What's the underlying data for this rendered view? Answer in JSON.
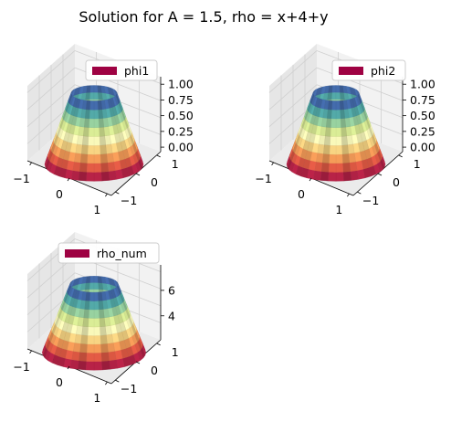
{
  "title": "Solution for A = 1.5, rho = x+4+y",
  "colormap": "Spectral",
  "colors": {
    "pane_back": "#f2f2f2",
    "pane_side": "#e6e6e6",
    "pane_floor": "#ebebeb",
    "gridline": "#d0d0d0",
    "legend_swatch": "#9e0142",
    "legend_border": "#cccccc",
    "axis_line": "#000000"
  },
  "chart_data": [
    {
      "type": "surface3d",
      "legend": "phi1",
      "shape": "truncated cone (radial profile, surface rises from outer rim to inner ring)",
      "x_ticks": [
        "−1",
        "0",
        "1"
      ],
      "y_ticks": [
        "−1",
        "0",
        "1"
      ],
      "z_ticks": [
        "0.00",
        "0.25",
        "0.50",
        "0.75",
        "1.00"
      ],
      "xlim": [
        -1,
        1
      ],
      "ylim": [
        -1,
        1
      ],
      "zlim": [
        0,
        1
      ],
      "z_at_outer_rim": 0.0,
      "z_at_inner_ring": 1.0
    },
    {
      "type": "surface3d",
      "legend": "phi2",
      "shape": "truncated cone (radial profile, surface rises from outer rim to inner ring)",
      "x_ticks": [
        "−1",
        "0",
        "1"
      ],
      "y_ticks": [
        "−1",
        "0",
        "1"
      ],
      "z_ticks": [
        "0.00",
        "0.25",
        "0.50",
        "0.75",
        "1.00"
      ],
      "xlim": [
        -1,
        1
      ],
      "ylim": [
        -1,
        1
      ],
      "zlim": [
        0,
        1
      ],
      "z_at_outer_rim": 0.0,
      "z_at_inner_ring": 1.0
    },
    {
      "type": "surface3d",
      "legend": "rho_num",
      "shape": "truncated cone (radial profile, surface rises from outer rim to inner ring)",
      "x_ticks": [
        "−1",
        "0",
        "1"
      ],
      "y_ticks": [
        "−1",
        "0",
        "1"
      ],
      "z_ticks": [
        "4",
        "6"
      ],
      "xlim": [
        -1,
        1
      ],
      "ylim": [
        -1,
        1
      ],
      "zlim": [
        2.3,
        7.2
      ],
      "z_at_outer_rim": 2.3,
      "z_at_inner_ring": 7.0
    }
  ]
}
